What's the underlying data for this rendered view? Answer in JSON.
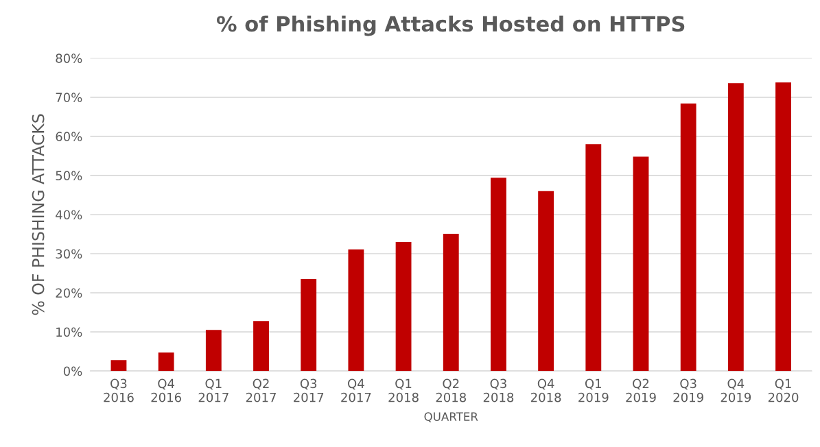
{
  "chart_data": {
    "type": "bar",
    "title": "% of Phishing Attacks Hosted on HTTPS",
    "xlabel": "QUARTER",
    "ylabel": "% OF PHISHING ATTACKS",
    "categories": [
      "Q3\n2016",
      "Q4\n2016",
      "Q1\n2017",
      "Q2\n2017",
      "Q3\n2017",
      "Q4\n2017",
      "Q1\n2018",
      "Q2\n2018",
      "Q3\n2018",
      "Q4\n2018",
      "Q1\n2019",
      "Q2\n2019",
      "Q3\n2019",
      "Q4\n2019",
      "Q1\n2020"
    ],
    "values": [
      2.8,
      4.7,
      10.5,
      12.8,
      23.5,
      31.1,
      33.0,
      35.1,
      49.4,
      46.0,
      58.0,
      54.8,
      68.4,
      73.6,
      73.8
    ],
    "color": "#c00000",
    "ylim": [
      0,
      80
    ],
    "yticks": [
      {
        "value": 0,
        "label": "0%"
      },
      {
        "value": 10,
        "label": "10%"
      },
      {
        "value": 20,
        "label": "20%"
      },
      {
        "value": 30,
        "label": "30%"
      },
      {
        "value": 40,
        "label": "40%"
      },
      {
        "value": 50,
        "label": "50%"
      },
      {
        "value": 60,
        "label": "60%"
      },
      {
        "value": 70,
        "label": "70%"
      },
      {
        "value": 80,
        "label": "80%"
      }
    ],
    "grid": "y"
  }
}
